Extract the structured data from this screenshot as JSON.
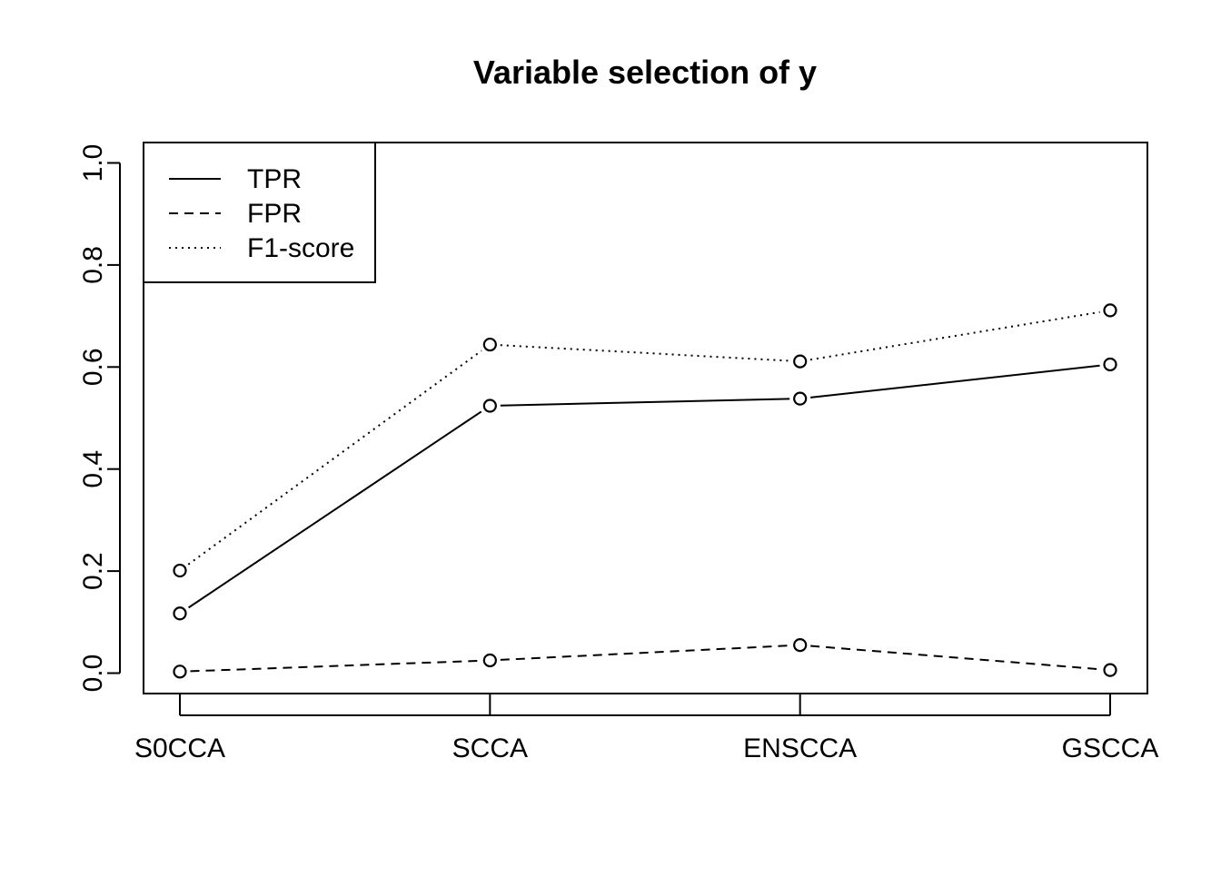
{
  "chart_data": {
    "type": "line",
    "title": "Variable selection of y",
    "xlabel": "",
    "ylabel": "",
    "categories": [
      "S0CCA",
      "SCCA",
      "ENSCCA",
      "GSCCA"
    ],
    "ylim": [
      -0.04,
      1.04
    ],
    "yticks": [
      0.0,
      0.2,
      0.4,
      0.6,
      0.8,
      1.0
    ],
    "ytick_labels": [
      "0.0",
      "0.2",
      "0.4",
      "0.6",
      "0.8",
      "1.0"
    ],
    "grid": false,
    "legend_position": "top-left",
    "markers": "open-circle",
    "series": [
      {
        "name": "TPR",
        "line_style": "solid",
        "color": "#000000",
        "values": [
          0.117,
          0.524,
          0.538,
          0.605
        ]
      },
      {
        "name": "FPR",
        "line_style": "dashed",
        "color": "#000000",
        "values": [
          0.003,
          0.025,
          0.055,
          0.006
        ]
      },
      {
        "name": "F1-score",
        "line_style": "dotted",
        "color": "#000000",
        "values": [
          0.201,
          0.644,
          0.611,
          0.711
        ]
      }
    ]
  }
}
